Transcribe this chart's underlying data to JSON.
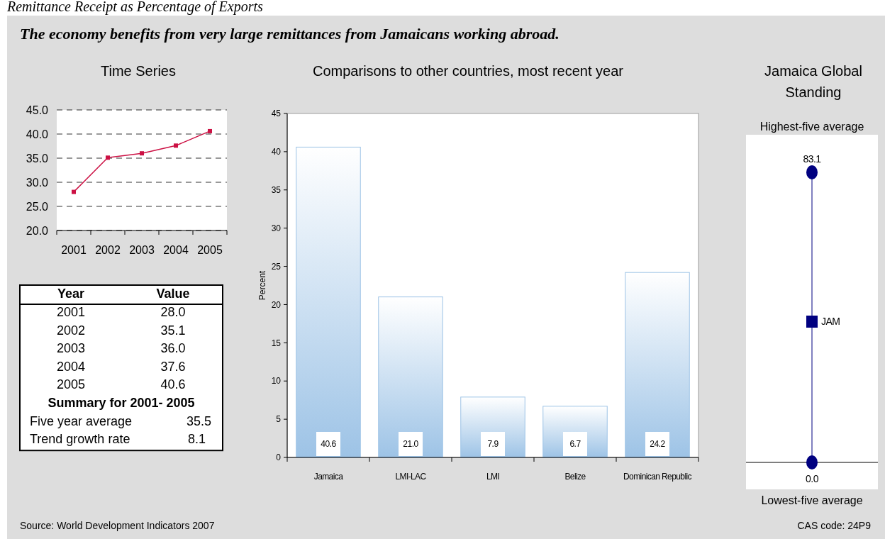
{
  "chart_data": [
    {
      "type": "other",
      "title": "Remittance Receipt as Percentage of Exports",
      "subtitle": "The economy benefits from very large remittances from Jamaicans working abroad.",
      "annotations": [
        "Source: World Development Indicators 2007",
        "CAS code: 24P9"
      ]
    },
    {
      "type": "line",
      "title": "Time Series",
      "categories": [
        "2001",
        "2002",
        "2003",
        "2004",
        "2005"
      ],
      "values": [
        28.0,
        35.1,
        36.0,
        37.6,
        40.6
      ],
      "color": "#cc1144",
      "ylim": [
        20,
        45
      ],
      "yticks": [
        {
          "value": 20,
          "label": "20.0"
        },
        {
          "value": 25,
          "label": "25.0"
        },
        {
          "value": 30,
          "label": "30.0"
        },
        {
          "value": 35,
          "label": "35.0"
        },
        {
          "value": 40,
          "label": "40.0"
        },
        {
          "value": 45,
          "label": "45.0"
        }
      ],
      "grid": "y",
      "marker": "square",
      "line_style": "solid",
      "annotations": [
        "Year",
        "Value",
        "2001",
        "28.0",
        "2002",
        "35.1",
        "2003",
        "36.0",
        "2004",
        "37.6",
        "2005",
        "40.6",
        "Summary for 2001- 2005",
        "Five year average",
        "35.5",
        "Trend growth rate",
        "8.1"
      ]
    },
    {
      "type": "bar",
      "title": "Comparisons to other countries, most recent year",
      "ylabel": "Percent",
      "categories": [
        "Jamaica",
        "LMI-LAC",
        "LMI",
        "Belize",
        "Dominican Republic"
      ],
      "values": [
        40.6,
        21.0,
        7.9,
        6.7,
        24.2
      ],
      "value_labels": [
        "40.6",
        "21.0",
        "7.9",
        "6.7",
        "24.2"
      ],
      "color": "#9dc3e6",
      "ylim": [
        0,
        45
      ],
      "yticks": [
        0,
        5,
        10,
        15,
        20,
        25,
        30,
        35,
        40,
        45
      ]
    },
    {
      "type": "other",
      "title": "Jamaica Global Standing",
      "annotations": [
        "Highest-five average",
        "83.1",
        "JAM",
        "0.0",
        "Lowest-five average"
      ]
    }
  ]
}
